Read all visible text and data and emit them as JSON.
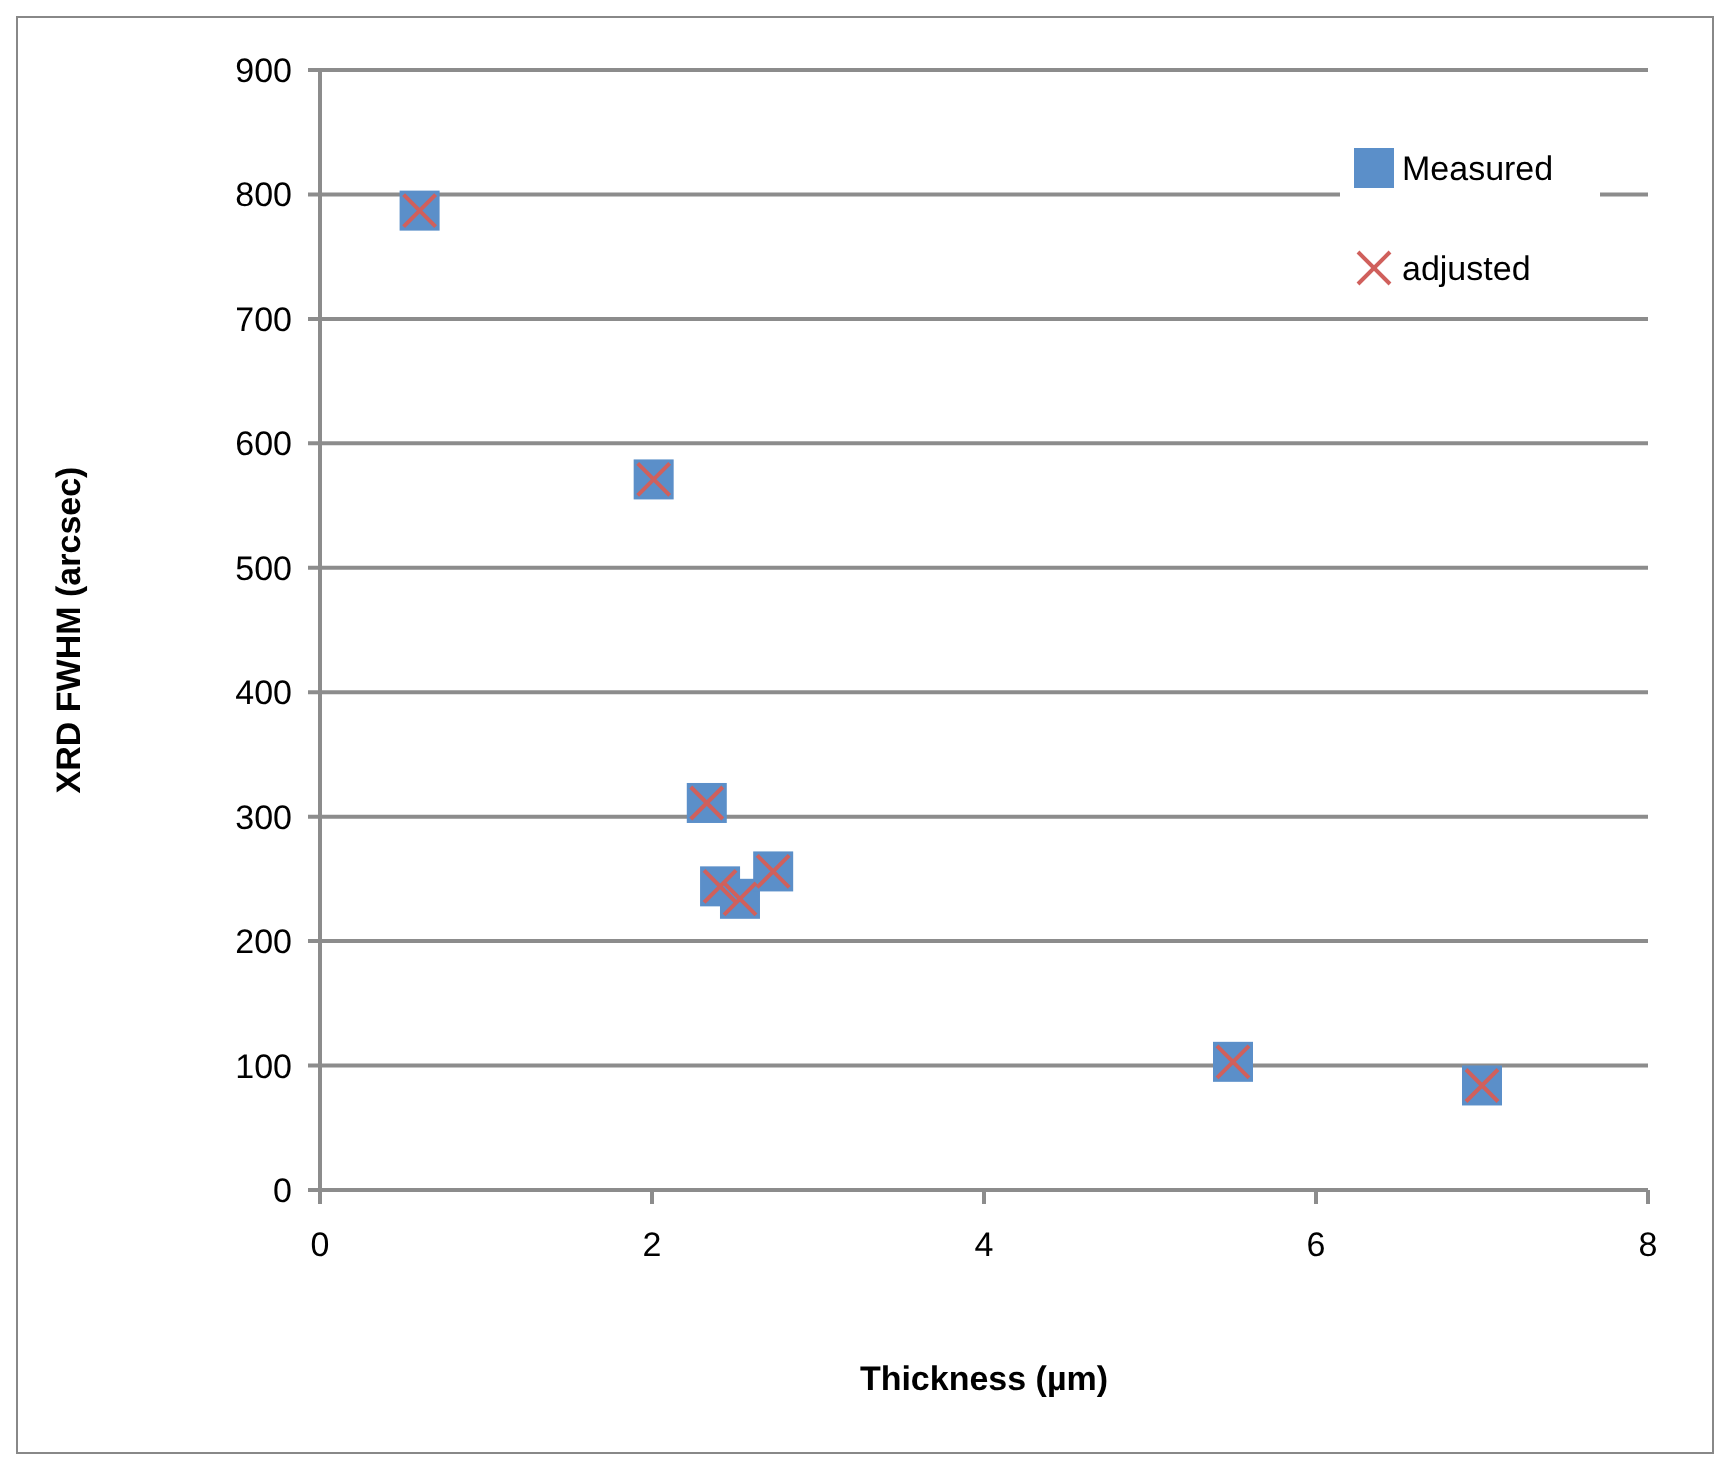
{
  "chart_data": {
    "type": "scatter",
    "xlabel": "Thickness (µm)",
    "ylabel": "XRD FWHM (arcsec)",
    "x": [
      0.6,
      2.01,
      2.33,
      2.41,
      2.53,
      2.73,
      5.5,
      7.0
    ],
    "series": [
      {
        "name": "Measured",
        "color": "#5b8fc9",
        "marker": "square",
        "values": [
          787,
          571,
          311,
          244,
          234,
          256,
          103,
          84
        ]
      },
      {
        "name": "adjusted",
        "color": "#d0605c",
        "marker": "cross",
        "values": [
          787,
          571,
          311,
          244,
          234,
          256,
          103,
          84
        ]
      }
    ],
    "xlim": [
      0,
      8
    ],
    "xticks": [
      0,
      2,
      4,
      6,
      8
    ],
    "ylim": [
      0,
      900
    ],
    "yticks": [
      0,
      100,
      200,
      300,
      400,
      500,
      600,
      700,
      800,
      900
    ],
    "grid": "y",
    "legend": "top right"
  }
}
